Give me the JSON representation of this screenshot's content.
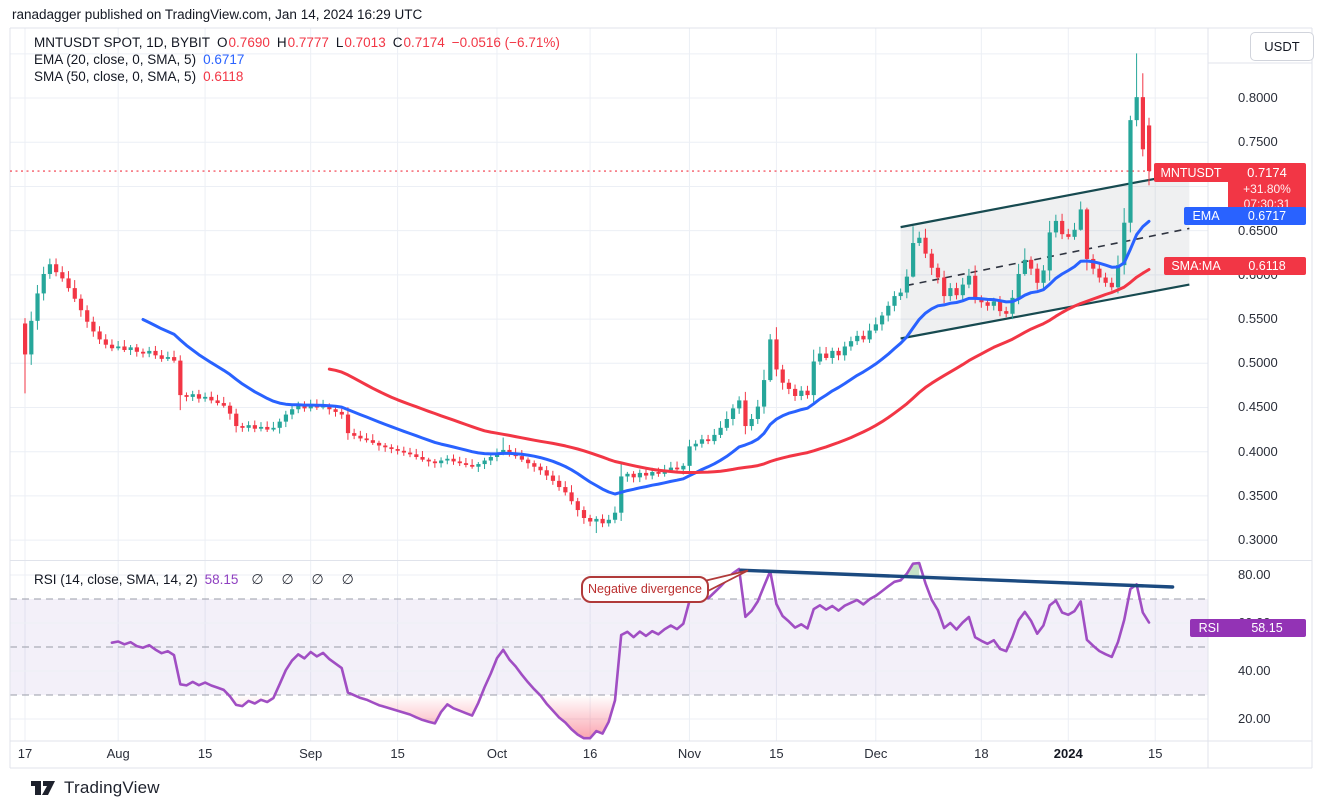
{
  "header": {
    "attribution": "ranadagger published on TradingView.com, Jan 14, 2024 16:29 UTC"
  },
  "legend": {
    "symbol_title": "MNTUSDT SPOT, 1D, BYBIT",
    "o_label": "O",
    "o_value": "0.7690",
    "h_label": "H",
    "h_value": "0.7777",
    "l_label": "L",
    "l_value": "0.7013",
    "c_label": "C",
    "c_value": "0.7174",
    "change": "−0.0516 (−6.71%)",
    "ema_label": "EMA (20, close, 0, SMA, 5)",
    "ema_value": "0.6717",
    "sma_label": "SMA (50, close, 0, SMA, 5)",
    "sma_value": "0.6118"
  },
  "rsi_legend": {
    "label": "RSI (14, close, SMA, 14, 2)",
    "value": "58.15",
    "hidden": "∅ ∅ ∅ ∅"
  },
  "price_axis": {
    "currency": "USDT",
    "labels": [
      "0.8000",
      "0.7500",
      "0.7000",
      "0.6500",
      "0.6000",
      "0.5500",
      "0.5000",
      "0.4500",
      "0.4000",
      "0.3500",
      "0.3000"
    ],
    "values": [
      0.8,
      0.75,
      0.7,
      0.65,
      0.6,
      0.55,
      0.5,
      0.45,
      0.4,
      0.35,
      0.3
    ]
  },
  "rsi_axis": {
    "labels": [
      "80.00",
      "60.00",
      "40.00",
      "20.00"
    ],
    "values": [
      80,
      60,
      40,
      20
    ]
  },
  "badges": {
    "price": {
      "tag": "MNTUSDT",
      "value": "0.7174",
      "change": "+31.80%",
      "countdown": "07:30:31"
    },
    "ema": {
      "tag": "EMA",
      "value": "0.6717"
    },
    "sma": {
      "tag": "SMA:MA",
      "value": "0.6118"
    },
    "rsi": {
      "tag": "RSI",
      "value": "58.15"
    }
  },
  "annotation": {
    "text": "Negative divergence"
  },
  "watermark": {
    "text": "TradingView"
  },
  "time_axis": {
    "ticks": [
      {
        "label": "17",
        "day": 0
      },
      {
        "label": "Aug",
        "day": 15
      },
      {
        "label": "15",
        "day": 29
      },
      {
        "label": "Sep",
        "day": 46
      },
      {
        "label": "15",
        "day": 60
      },
      {
        "label": "Oct",
        "day": 76
      },
      {
        "label": "16",
        "day": 91
      },
      {
        "label": "Nov",
        "day": 107
      },
      {
        "label": "15",
        "day": 121
      },
      {
        "label": "Dec",
        "day": 137
      },
      {
        "label": "18",
        "day": 154
      },
      {
        "label": "2024",
        "day": 168,
        "bold": true
      },
      {
        "label": "15",
        "day": 182
      }
    ]
  },
  "chart_data": {
    "type": "candlestick",
    "symbol": "MNTUSDT",
    "exchange": "BYBIT",
    "interval": "1D",
    "start_date": "2023-07-17",
    "price_ylim": [
      0.2775,
      0.8792
    ],
    "rsi_ylim": [
      10.83,
      85.83
    ],
    "last_price": 0.7174,
    "last_candle": {
      "open": 0.769,
      "high": 0.7777,
      "low": 0.7013,
      "close": 0.7174
    },
    "closes": [
      0.51,
      0.548,
      0.579,
      0.601,
      0.612,
      0.603,
      0.596,
      0.585,
      0.573,
      0.56,
      0.547,
      0.536,
      0.527,
      0.521,
      0.517,
      0.519,
      0.515,
      0.518,
      0.513,
      0.511,
      0.514,
      0.509,
      0.505,
      0.507,
      0.503,
      0.464,
      0.462,
      0.465,
      0.46,
      0.462,
      0.458,
      0.455,
      0.452,
      0.443,
      0.429,
      0.427,
      0.43,
      0.426,
      0.428,
      0.425,
      0.427,
      0.434,
      0.442,
      0.448,
      0.452,
      0.449,
      0.453,
      0.45,
      0.452,
      0.448,
      0.445,
      0.442,
      0.421,
      0.418,
      0.415,
      0.413,
      0.41,
      0.407,
      0.405,
      0.403,
      0.401,
      0.399,
      0.397,
      0.394,
      0.391,
      0.389,
      0.387,
      0.39,
      0.392,
      0.389,
      0.387,
      0.385,
      0.383,
      0.386,
      0.39,
      0.394,
      0.399,
      0.402,
      0.398,
      0.395,
      0.391,
      0.387,
      0.383,
      0.379,
      0.373,
      0.367,
      0.36,
      0.354,
      0.344,
      0.334,
      0.325,
      0.321,
      0.324,
      0.319,
      0.323,
      0.331,
      0.372,
      0.375,
      0.371,
      0.376,
      0.373,
      0.377,
      0.375,
      0.379,
      0.382,
      0.38,
      0.384,
      0.406,
      0.409,
      0.414,
      0.412,
      0.419,
      0.427,
      0.437,
      0.449,
      0.458,
      0.429,
      0.437,
      0.451,
      0.481,
      0.527,
      0.493,
      0.478,
      0.471,
      0.463,
      0.469,
      0.464,
      0.502,
      0.511,
      0.506,
      0.514,
      0.509,
      0.519,
      0.525,
      0.531,
      0.527,
      0.537,
      0.544,
      0.554,
      0.565,
      0.576,
      0.58,
      0.598,
      0.636,
      0.642,
      0.624,
      0.608,
      0.597,
      0.576,
      0.585,
      0.577,
      0.589,
      0.599,
      0.574,
      0.569,
      0.565,
      0.57,
      0.559,
      0.556,
      0.574,
      0.601,
      0.617,
      0.607,
      0.591,
      0.605,
      0.648,
      0.661,
      0.646,
      0.643,
      0.651,
      0.674,
      0.618,
      0.607,
      0.597,
      0.591,
      0.586,
      0.611,
      0.659,
      0.775,
      0.801,
      0.742,
      0.7174
    ],
    "open_overrides": {
      "181": 0.769
    },
    "wick_overrides": {
      "0": [
        0.551,
        0.466
      ],
      "25": [
        0.509,
        0.447
      ],
      "77": [
        0.416,
        0.396
      ],
      "92": [
        0.327,
        0.308
      ],
      "120": [
        0.533,
        0.479
      ],
      "143": [
        0.655,
        0.597
      ],
      "161": [
        0.63,
        0.599
      ],
      "170": [
        0.683,
        0.65
      ],
      "171": [
        0.676,
        0.605
      ],
      "178": [
        0.78,
        0.648
      ],
      "179": [
        0.8505,
        0.768
      ],
      "180": [
        0.828,
        0.734
      ],
      "181": [
        0.7777,
        0.7013
      ]
    },
    "indicators": {
      "ema_period": 20,
      "sma_period": 50,
      "rsi_period": 14,
      "rsi_value": 58.15,
      "ema_value": 0.6717,
      "sma_value": 0.6118
    },
    "rsi_levels": {
      "upper": 70,
      "middle": 50,
      "lower": 30
    },
    "channel": {
      "d1": 141,
      "d2": 187.5,
      "lower": [
        0.528,
        0.589
      ],
      "upper": [
        0.654,
        0.716
      ],
      "mid": [
        0.588,
        0.6525
      ]
    },
    "rsi_trendline": {
      "d1": 115.3,
      "v1": 82.0,
      "d2": 184.8,
      "v2": 75.0
    },
    "colors": {
      "up": "#26a69a",
      "down": "#f23645",
      "ema": "#2962ff",
      "sma": "#f23645",
      "rsi": "#a04ec3",
      "rsi_badge": "#9333b5",
      "trendline": "#1b4a80",
      "channel": "#174a50",
      "channel_fill": "rgba(131,136,148,0.13)",
      "grid": "#eceff5",
      "frame": "#e0e3eb",
      "band": "rgba(126,87,194,0.09)",
      "oversold": "rgba(246,70,93,0.45)",
      "divergence_fill": "rgba(67,160,71,0.30)",
      "last_price_line": "#f23645",
      "mid_dashed": "#2f3440"
    }
  }
}
